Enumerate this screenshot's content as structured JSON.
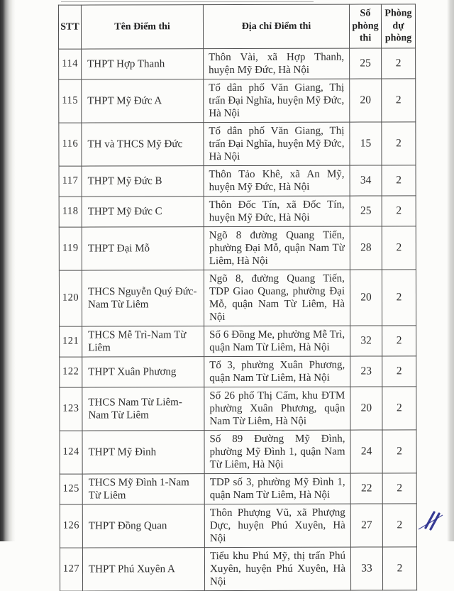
{
  "document": {
    "kind": "scanned-table-page",
    "pen_mark_color": "#2b2f8e",
    "border_color": "#4f4f4f"
  },
  "table": {
    "columns": [
      {
        "key": "stt",
        "label": "STT"
      },
      {
        "key": "name",
        "label": "Tên Điểm thi"
      },
      {
        "key": "address",
        "label": "Địa chỉ Điểm thi"
      },
      {
        "key": "rooms",
        "label": "Số phòng thi"
      },
      {
        "key": "backup",
        "label": "Phòng dự phòng"
      }
    ],
    "rows": [
      {
        "stt": "114",
        "name": "THPT Hợp Thanh",
        "address": "Thôn Vài, xã Hợp Thanh, huyện Mỹ Đức, Hà Nội",
        "rooms": "25",
        "backup": "2"
      },
      {
        "stt": "115",
        "name": "THPT Mỹ Đức A",
        "address": "Tổ dân phố Văn Giang, Thị trấn Đại Nghĩa, huyện Mỹ Đức, Hà Nội",
        "rooms": "20",
        "backup": "2"
      },
      {
        "stt": "116",
        "name": "TH và THCS Mỹ Đức",
        "address": "Tổ dân phố Văn Giang, Thị trấn Đại Nghĩa, huyện Mỹ Đức, Hà Nội",
        "rooms": "15",
        "backup": "2"
      },
      {
        "stt": "117",
        "name": "THPT Mỹ Đức B",
        "address": "Thôn Tảo Khê, xã An Mỹ, huyện Mỹ Đức, Hà Nội",
        "rooms": "34",
        "backup": "2"
      },
      {
        "stt": "118",
        "name": "THPT Mỹ Đức C",
        "address": "Thôn Đốc Tín, xã Đốc Tín, huyện Mỹ Đức, Hà Nội",
        "rooms": "25",
        "backup": "2"
      },
      {
        "stt": "119",
        "name": "THPT Đại Mỗ",
        "address": "Ngõ 8 đường Quang Tiến, phường Đại Mỗ, quận Nam Từ Liêm, Hà Nội",
        "rooms": "28",
        "backup": "2"
      },
      {
        "stt": "120",
        "name": "THCS Nguyễn Quý Đức-Nam Từ Liêm",
        "address": "Ngõ 8, đường Quang Tiến, TDP Giao Quang, phường Đại Mỗ, quận Nam Từ Liêm, Hà Nội",
        "rooms": "20",
        "backup": "2"
      },
      {
        "stt": "121",
        "name": "THCS Mễ Trì-Nam Từ Liêm",
        "address": "Số 6 Đồng Me, phường Mễ Trì, quận Nam Từ Liêm, Hà Nội",
        "rooms": "32",
        "backup": "2"
      },
      {
        "stt": "122",
        "name": "THPT Xuân Phương",
        "address": "Tổ 3, phường Xuân Phương, quận Nam Từ Liêm, Hà Nội",
        "rooms": "23",
        "backup": "2"
      },
      {
        "stt": "123",
        "name": "THCS Nam Từ Liêm-Nam Từ Liêm",
        "address": "Số 26 phố Thị Cấm, khu ĐTM phường Xuân Phương, quận Nam Từ Liêm, Hà Nội",
        "rooms": "20",
        "backup": "2"
      },
      {
        "stt": "124",
        "name": "THPT Mỹ Đình",
        "address": "Số 89 Đường Mỹ Đình, phường Mỹ Đình 1, quận Nam Từ Liêm, Hà Nội",
        "rooms": "24",
        "backup": "2"
      },
      {
        "stt": "125",
        "name": "THCS Mỹ Đình 1-Nam Từ Liêm",
        "address": "TDP số 3, phường Mỹ Đình 1, quận Nam Từ Liêm, Hà Nội",
        "rooms": "22",
        "backup": "2"
      },
      {
        "stt": "126",
        "name": "THPT Đồng Quan",
        "address": "Thôn Phượng Vũ, xã Phượng Dực, huyện Phú Xuyên, Hà Nội",
        "rooms": "27",
        "backup": "2"
      },
      {
        "stt": "127",
        "name": "THPT Phú Xuyên A",
        "address": "Tiểu khu Phú Mỹ, thị trấn Phú Xuyên, huyện Phú Xuyên, Hà Nội",
        "rooms": "33",
        "backup": "2"
      }
    ]
  }
}
